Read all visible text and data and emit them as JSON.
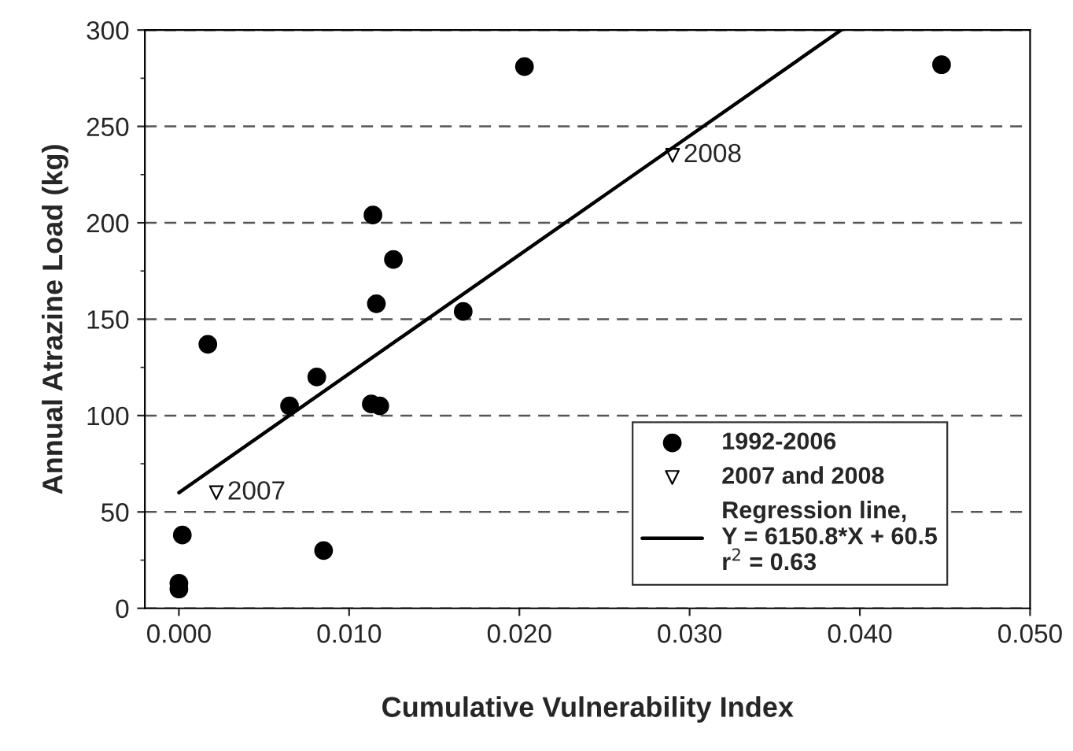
{
  "chart_data": {
    "type": "scatter",
    "xlabel": "Cumulative Vulnerability Index",
    "ylabel": "Annual Atrazine Load (kg)",
    "xlim": [
      -0.002,
      0.05
    ],
    "xticks": [
      {
        "value": 0,
        "label": "0.000"
      },
      {
        "value": 0.01,
        "label": "0.010"
      },
      {
        "value": 0.02,
        "label": "0.020"
      },
      {
        "value": 0.03,
        "label": "0.030"
      },
      {
        "value": 0.04,
        "label": "0.040"
      },
      {
        "value": 0.05,
        "label": "0.050"
      }
    ],
    "ylim": [
      0,
      300
    ],
    "yticks": [
      0,
      50,
      100,
      150,
      200,
      250,
      300
    ],
    "grid": "y",
    "legend": "bottom right",
    "series": [
      {
        "name": "1992-2006",
        "marker": "circle",
        "color": "#000000",
        "x": [
          0.0,
          0.0,
          0.0002,
          0.0017,
          0.0065,
          0.0081,
          0.0085,
          0.0113,
          0.0114,
          0.0116,
          0.0118,
          0.0126,
          0.0167,
          0.0203,
          0.0448
        ],
        "values": [
          10,
          13,
          38,
          137,
          105,
          120,
          30,
          106,
          204,
          158,
          105,
          181,
          154,
          281,
          282
        ]
      },
      {
        "name": "2007 and 2008",
        "marker": "triangle",
        "color": "#000000",
        "x": [
          0.0022,
          0.029
        ],
        "values": [
          60,
          235
        ]
      },
      {
        "name": "Regression line,\nY = 6150.8*X + 60.5\nr$^{2}$ = 0.63",
        "type": "line",
        "line_style": "solid",
        "color": "#000000",
        "x": [
          0.0,
          0.0389
        ],
        "values": [
          60,
          300
        ]
      }
    ],
    "annotations": [
      {
        "text": "2007",
        "x": 0.0022,
        "y": 60
      },
      {
        "text": "2008",
        "x": 0.029,
        "y": 235
      }
    ]
  }
}
